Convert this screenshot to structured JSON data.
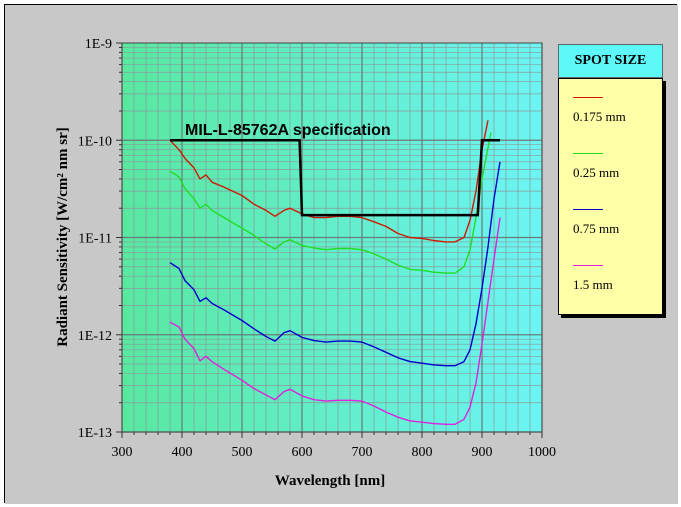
{
  "chart_data": {
    "type": "line",
    "title": "",
    "xlabel": "Wavelength [nm]",
    "ylabel": "Radiant Sensitivity [W/cm² nm sr]",
    "xlim": [
      300,
      1000
    ],
    "ylim": [
      1e-13,
      1e-09
    ],
    "yscale": "log",
    "x_ticks": [
      "300",
      "400",
      "500",
      "600",
      "700",
      "800",
      "900",
      "1000"
    ],
    "y_ticks": [
      "1E-13",
      "1E-12",
      "1E-11",
      "1E-10",
      "1E-9"
    ],
    "grid": true,
    "legend_title": "SPOT SIZE",
    "legend_position": "right",
    "annotation": "MIL-L-85762A specification",
    "spec_line": {
      "x": [
        380,
        596,
        600,
        893,
        900,
        930
      ],
      "y": [
        1e-10,
        1e-10,
        1.7e-11,
        1.7e-11,
        1e-10,
        1e-10
      ]
    },
    "series": [
      {
        "name": "0.175 mm",
        "color": "#cc1a00",
        "x": [
          380,
          395,
          405,
          420,
          430,
          440,
          450,
          470,
          500,
          520,
          540,
          555,
          570,
          580,
          600,
          620,
          640,
          660,
          680,
          700,
          720,
          740,
          760,
          780,
          800,
          820,
          840,
          855,
          870,
          880,
          890,
          900,
          910
        ],
        "y": [
          1e-10,
          8e-11,
          6.5e-11,
          5.2e-11,
          4e-11,
          4.4e-11,
          3.7e-11,
          3.3e-11,
          2.7e-11,
          2.2e-11,
          1.9e-11,
          1.65e-11,
          1.9e-11,
          2e-11,
          1.75e-11,
          1.6e-11,
          1.6e-11,
          1.65e-11,
          1.65e-11,
          1.6e-11,
          1.45e-11,
          1.3e-11,
          1.1e-11,
          1e-11,
          9.8e-12,
          9.3e-12,
          9e-12,
          9e-12,
          1e-11,
          1.5e-11,
          3e-11,
          8e-11,
          1.6e-10
        ]
      },
      {
        "name": "0.25 mm",
        "color": "#22dd22",
        "x": [
          380,
          395,
          405,
          420,
          430,
          440,
          450,
          470,
          500,
          520,
          540,
          555,
          570,
          580,
          600,
          620,
          640,
          660,
          680,
          700,
          720,
          740,
          760,
          780,
          800,
          820,
          840,
          855,
          870,
          880,
          890,
          900,
          915
        ],
        "y": [
          4.8e-11,
          4.2e-11,
          3.2e-11,
          2.5e-11,
          2e-11,
          2.2e-11,
          1.9e-11,
          1.6e-11,
          1.25e-11,
          1.05e-11,
          8.6e-12,
          7.6e-12,
          9e-12,
          9.5e-12,
          8.3e-12,
          7.8e-12,
          7.5e-12,
          7.7e-12,
          7.7e-12,
          7.5e-12,
          6.8e-12,
          6e-12,
          5.2e-12,
          4.7e-12,
          4.6e-12,
          4.4e-12,
          4.3e-12,
          4.3e-12,
          5e-12,
          7.5e-12,
          1.6e-11,
          4e-11,
          1.2e-10
        ]
      },
      {
        "name": "0.75 mm",
        "color": "#0000cc",
        "x": [
          380,
          395,
          405,
          420,
          430,
          440,
          450,
          470,
          500,
          520,
          540,
          555,
          570,
          580,
          600,
          620,
          640,
          660,
          680,
          700,
          720,
          740,
          760,
          780,
          800,
          820,
          840,
          855,
          870,
          880,
          890,
          900,
          910,
          920,
          930
        ],
        "y": [
          5.5e-12,
          4.8e-12,
          3.6e-12,
          2.9e-12,
          2.2e-12,
          2.4e-12,
          2.1e-12,
          1.8e-12,
          1.4e-12,
          1.15e-12,
          9.6e-13,
          8.6e-13,
          1.05e-12,
          1.1e-12,
          9.4e-13,
          8.7e-13,
          8.4e-13,
          8.6e-13,
          8.6e-13,
          8.4e-13,
          7.5e-13,
          6.6e-13,
          5.8e-13,
          5.3e-13,
          5.1e-13,
          4.9e-13,
          4.8e-13,
          4.8e-13,
          5.3e-13,
          7e-13,
          1.3e-12,
          3e-12,
          8e-12,
          2.5e-11,
          6e-11
        ]
      },
      {
        "name": "1.5 mm",
        "color": "#dd22dd",
        "x": [
          380,
          395,
          405,
          420,
          430,
          440,
          450,
          470,
          500,
          520,
          540,
          555,
          570,
          580,
          600,
          620,
          640,
          660,
          680,
          700,
          720,
          740,
          760,
          780,
          800,
          820,
          840,
          855,
          870,
          880,
          890,
          900,
          910,
          920,
          930
        ],
        "y": [
          1.35e-12,
          1.2e-12,
          9e-13,
          7.2e-13,
          5.4e-13,
          6e-13,
          5.3e-13,
          4.4e-13,
          3.4e-13,
          2.8e-13,
          2.4e-13,
          2.15e-13,
          2.6e-13,
          2.75e-13,
          2.35e-13,
          2.15e-13,
          2.08e-13,
          2.12e-13,
          2.12e-13,
          2.08e-13,
          1.85e-13,
          1.6e-13,
          1.42e-13,
          1.3e-13,
          1.26e-13,
          1.22e-13,
          1.2e-13,
          1.2e-13,
          1.35e-13,
          1.8e-13,
          3.2e-13,
          8e-13,
          2.2e-12,
          6e-12,
          1.6e-11
        ]
      }
    ]
  }
}
